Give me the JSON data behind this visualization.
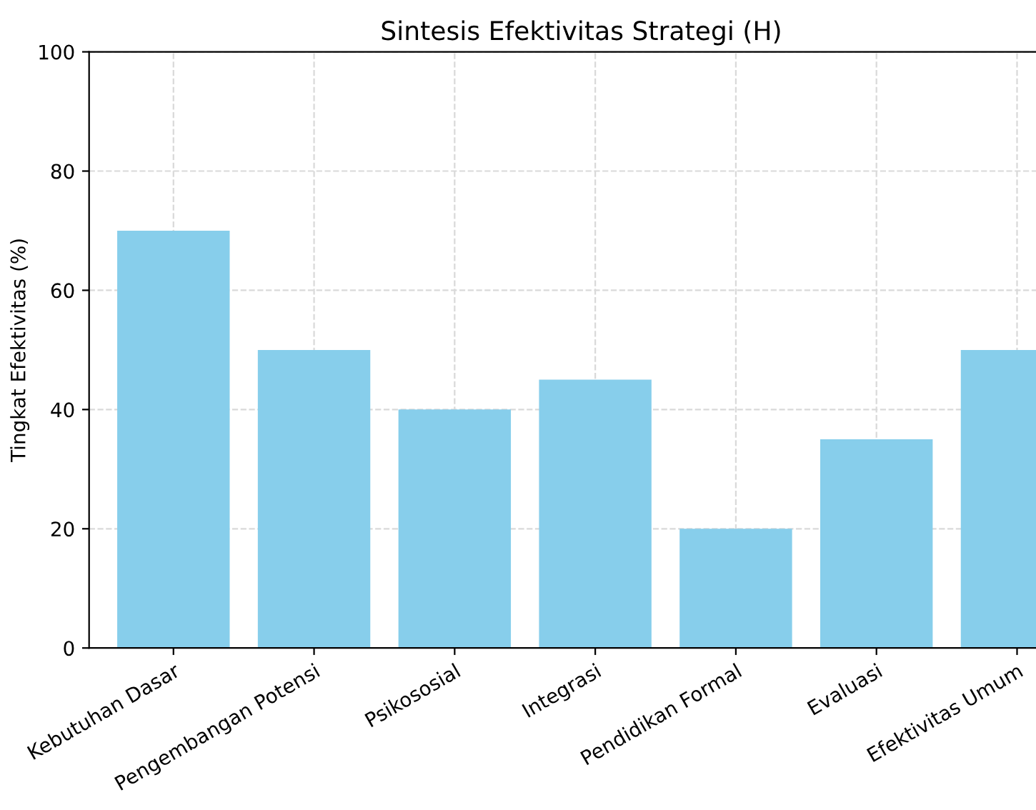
{
  "chart_data": {
    "type": "bar",
    "title": "Sintesis Efektivitas Strategi (H)",
    "ylabel": "Tingkat Efektivitas (%)",
    "categories": [
      "Kebutuhan Dasar",
      "Pengembangan Potensi",
      "Psikososial",
      "Integrasi",
      "Pendidikan Formal",
      "Evaluasi",
      "Efektivitas Umum"
    ],
    "values": [
      70,
      50,
      40,
      45,
      20,
      35,
      50
    ],
    "color": "#87ceeb",
    "ylim": [
      0,
      100
    ],
    "yticks": [
      0,
      20,
      40,
      60,
      80,
      100
    ],
    "grid": true
  }
}
